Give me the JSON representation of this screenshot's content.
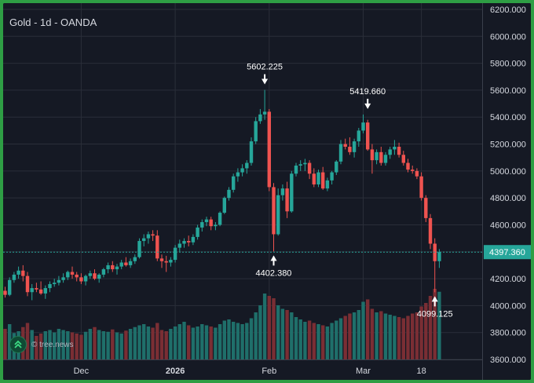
{
  "header": {
    "title": "Gold - 1d - OANDA"
  },
  "watermark": {
    "text": "© tree.news",
    "icon": "double-chevron-up-icon"
  },
  "colors": {
    "up": "#26a69a",
    "down": "#ef5350",
    "vol_up": "#1f6f6a",
    "vol_down": "#7a2e34",
    "bg": "#151924",
    "grid": "#2a2e39",
    "text": "#d6d9e0",
    "border": "#2e9e44"
  },
  "chart_data": {
    "type": "candlestick",
    "title": "Gold - 1d - OANDA",
    "ylim": [
      3600,
      6200
    ],
    "y_ticks": [
      "6200.000",
      "6000.000",
      "5800.000",
      "5600.000",
      "5400.000",
      "5200.000",
      "5000.000",
      "4800.000",
      "4600.000",
      "4400.000",
      "4200.000",
      "4000.000",
      "3800.000",
      "3600.000"
    ],
    "x_ticks": [
      {
        "label": "Dec",
        "index": 17,
        "bold": false
      },
      {
        "label": "2026",
        "index": 38,
        "bold": true
      },
      {
        "label": "Feb",
        "index": 59,
        "bold": false
      },
      {
        "label": "Mar",
        "index": 80,
        "bold": false
      },
      {
        "label": "18",
        "index": 93,
        "bold": false
      }
    ],
    "last_price": "4397.360",
    "last_price_value": 4397.36,
    "annotations": [
      {
        "text": "5602.225",
        "index": 58,
        "price": 5602.225,
        "side": "above"
      },
      {
        "text": "4402.380",
        "index": 60,
        "price": 4402.38,
        "side": "below"
      },
      {
        "text": "5419.660",
        "index": 81,
        "price": 5419.66,
        "side": "above"
      },
      {
        "text": "4099.125",
        "index": 96,
        "price": 4099.125,
        "side": "below"
      }
    ],
    "ohlc": [
      [
        4110,
        4140,
        4060,
        4080
      ],
      [
        4080,
        4210,
        4070,
        4190
      ],
      [
        4190,
        4250,
        4170,
        4230
      ],
      [
        4230,
        4290,
        4200,
        4260
      ],
      [
        4260,
        4300,
        4180,
        4220
      ],
      [
        4220,
        4250,
        4070,
        4100
      ],
      [
        4100,
        4160,
        4040,
        4130
      ],
      [
        4130,
        4170,
        4100,
        4120
      ],
      [
        4120,
        4180,
        4080,
        4090
      ],
      [
        4090,
        4150,
        4050,
        4130
      ],
      [
        4130,
        4180,
        4100,
        4160
      ],
      [
        4160,
        4200,
        4140,
        4170
      ],
      [
        4170,
        4220,
        4150,
        4190
      ],
      [
        4190,
        4240,
        4170,
        4210
      ],
      [
        4210,
        4260,
        4190,
        4250
      ],
      [
        4250,
        4290,
        4200,
        4230
      ],
      [
        4230,
        4250,
        4180,
        4210
      ],
      [
        4210,
        4240,
        4160,
        4180
      ],
      [
        4180,
        4230,
        4150,
        4220
      ],
      [
        4220,
        4260,
        4200,
        4240
      ],
      [
        4240,
        4270,
        4190,
        4200
      ],
      [
        4200,
        4240,
        4170,
        4230
      ],
      [
        4230,
        4280,
        4210,
        4270
      ],
      [
        4270,
        4320,
        4240,
        4300
      ],
      [
        4300,
        4330,
        4250,
        4270
      ],
      [
        4270,
        4310,
        4230,
        4290
      ],
      [
        4290,
        4340,
        4270,
        4320
      ],
      [
        4320,
        4360,
        4290,
        4300
      ],
      [
        4300,
        4350,
        4280,
        4330
      ],
      [
        4330,
        4380,
        4310,
        4360
      ],
      [
        4360,
        4500,
        4350,
        4480
      ],
      [
        4480,
        4530,
        4440,
        4500
      ],
      [
        4500,
        4550,
        4460,
        4530
      ],
      [
        4530,
        4560,
        4480,
        4520
      ],
      [
        4520,
        4560,
        4330,
        4350
      ],
      [
        4350,
        4380,
        4280,
        4330
      ],
      [
        4330,
        4370,
        4250,
        4320
      ],
      [
        4320,
        4360,
        4290,
        4340
      ],
      [
        4340,
        4450,
        4320,
        4430
      ],
      [
        4430,
        4490,
        4400,
        4460
      ],
      [
        4460,
        4500,
        4430,
        4480
      ],
      [
        4480,
        4520,
        4440,
        4470
      ],
      [
        4470,
        4530,
        4450,
        4510
      ],
      [
        4510,
        4600,
        4490,
        4580
      ],
      [
        4580,
        4640,
        4550,
        4620
      ],
      [
        4620,
        4660,
        4590,
        4640
      ],
      [
        4640,
        4660,
        4560,
        4590
      ],
      [
        4590,
        4620,
        4560,
        4600
      ],
      [
        4600,
        4700,
        4590,
        4690
      ],
      [
        4690,
        4810,
        4680,
        4800
      ],
      [
        4800,
        4880,
        4780,
        4860
      ],
      [
        4860,
        4980,
        4840,
        4960
      ],
      [
        4960,
        5020,
        4920,
        4990
      ],
      [
        4990,
        5050,
        4960,
        5020
      ],
      [
        5020,
        5080,
        4980,
        5060
      ],
      [
        5060,
        5250,
        5040,
        5220
      ],
      [
        5220,
        5400,
        5200,
        5370
      ],
      [
        5370,
        5460,
        5350,
        5420
      ],
      [
        5420,
        5602.225,
        5380,
        5440
      ],
      [
        5440,
        5460,
        4850,
        4880
      ],
      [
        4880,
        4910,
        4402.38,
        4530
      ],
      [
        4530,
        4870,
        4520,
        4820
      ],
      [
        4820,
        4900,
        4780,
        4870
      ],
      [
        4870,
        4920,
        4650,
        4700
      ],
      [
        4700,
        5000,
        4690,
        4980
      ],
      [
        4980,
        5060,
        4960,
        5040
      ],
      [
        5040,
        5080,
        5000,
        5050
      ],
      [
        5050,
        5090,
        5000,
        5060
      ],
      [
        5060,
        5080,
        4940,
        4980
      ],
      [
        4980,
        5020,
        4880,
        4900
      ],
      [
        4900,
        5010,
        4880,
        4990
      ],
      [
        4990,
        5030,
        4860,
        4870
      ],
      [
        4870,
        4950,
        4850,
        4930
      ],
      [
        4930,
        5000,
        4900,
        4990
      ],
      [
        4990,
        5080,
        4970,
        5070
      ],
      [
        5070,
        5230,
        5050,
        5200
      ],
      [
        5200,
        5240,
        5160,
        5180
      ],
      [
        5180,
        5250,
        5120,
        5140
      ],
      [
        5140,
        5240,
        5100,
        5220
      ],
      [
        5220,
        5320,
        5180,
        5300
      ],
      [
        5300,
        5419.66,
        5280,
        5360
      ],
      [
        5360,
        5380,
        5150,
        5160
      ],
      [
        5160,
        5200,
        4980,
        5080
      ],
      [
        5080,
        5160,
        5050,
        5140
      ],
      [
        5140,
        5180,
        5040,
        5060
      ],
      [
        5060,
        5140,
        5040,
        5120
      ],
      [
        5120,
        5180,
        5090,
        5160
      ],
      [
        5160,
        5230,
        5120,
        5180
      ],
      [
        5180,
        5210,
        5100,
        5120
      ],
      [
        5120,
        5150,
        5040,
        5060
      ],
      [
        5060,
        5090,
        4990,
        5010
      ],
      [
        5010,
        5040,
        4980,
        5000
      ],
      [
        5000,
        5020,
        4940,
        4960
      ],
      [
        4960,
        4990,
        4780,
        4800
      ],
      [
        4800,
        4820,
        4620,
        4650
      ],
      [
        4650,
        4680,
        4420,
        4460
      ],
      [
        4460,
        4500,
        4099.125,
        4330
      ],
      [
        4330,
        4420,
        4280,
        4397.36
      ]
    ],
    "volume": [
      52,
      60,
      45,
      48,
      55,
      62,
      50,
      40,
      44,
      48,
      50,
      46,
      52,
      50,
      48,
      46,
      44,
      42,
      47,
      52,
      55,
      50,
      48,
      47,
      51,
      46,
      44,
      49,
      52,
      55,
      58,
      60,
      56,
      54,
      62,
      50,
      48,
      52,
      56,
      60,
      64,
      58,
      54,
      56,
      60,
      58,
      56,
      54,
      60,
      66,
      68,
      64,
      62,
      60,
      62,
      70,
      80,
      92,
      112,
      108,
      104,
      92,
      86,
      84,
      80,
      72,
      68,
      64,
      66,
      62,
      60,
      58,
      56,
      62,
      66,
      70,
      74,
      78,
      80,
      84,
      98,
      102,
      86,
      80,
      82,
      78,
      76,
      74,
      72,
      70,
      74,
      78,
      80,
      90,
      96,
      108,
      120,
      115
    ],
    "vol_max": 120
  }
}
